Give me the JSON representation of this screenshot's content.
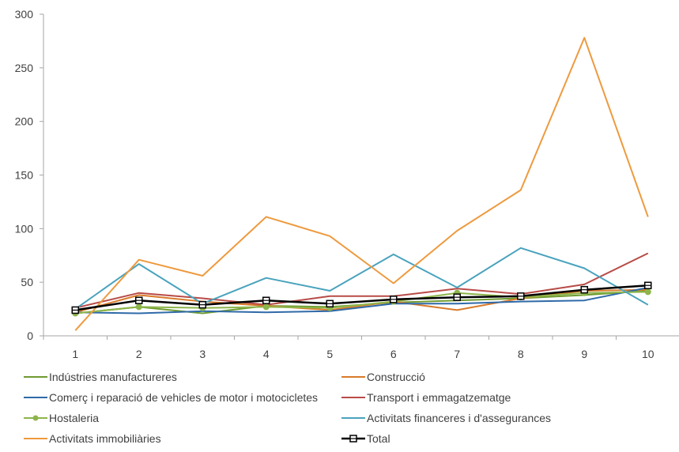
{
  "chart_data": {
    "type": "line",
    "x": [
      1,
      2,
      3,
      4,
      5,
      6,
      7,
      8,
      9,
      10
    ],
    "ylim": [
      0,
      300
    ],
    "yticks": [
      0,
      50,
      100,
      150,
      200,
      250,
      300
    ],
    "grid": false,
    "legend_position": "bottom",
    "series": [
      {
        "name": "Indústries manufactureres",
        "color": "#6f9b31",
        "marker": "none",
        "width": 2,
        "values": [
          21,
          27,
          21,
          28,
          27,
          31,
          33,
          35,
          38,
          42
        ]
      },
      {
        "name": "Construcció",
        "color": "#d97b2a",
        "marker": "none",
        "width": 2,
        "values": [
          22,
          38,
          32,
          28,
          24,
          32,
          24,
          35,
          42,
          43
        ]
      },
      {
        "name": "Comerç i reparació de vehicles de motor i motocicletes",
        "color": "#2f6aa8",
        "marker": "none",
        "width": 2,
        "values": [
          22,
          21,
          23,
          22,
          23,
          30,
          30,
          32,
          33,
          45
        ]
      },
      {
        "name": "Transport i emmagatzematge",
        "color": "#b84b47",
        "marker": "none",
        "width": 2,
        "values": [
          26,
          40,
          35,
          29,
          37,
          37,
          44,
          39,
          48,
          77
        ]
      },
      {
        "name": "Hostaleria",
        "color": "#8db54b",
        "marker": "circle",
        "width": 2,
        "values": [
          21,
          27,
          26,
          27,
          26,
          32,
          40,
          36,
          40,
          41
        ]
      },
      {
        "name": "Activitats financeres i d'assegurances",
        "color": "#4aa3bd",
        "marker": "none",
        "width": 2,
        "values": [
          25,
          67,
          30,
          54,
          42,
          76,
          45,
          82,
          63,
          29
        ]
      },
      {
        "name": "Activitats immobiliàries",
        "color": "#ee9a3e",
        "marker": "none",
        "width": 2,
        "values": [
          5,
          71,
          56,
          111,
          93,
          49,
          98,
          136,
          278,
          111
        ]
      },
      {
        "name": "Total",
        "color": "#000000",
        "marker": "square",
        "width": 2.5,
        "values": [
          24,
          33,
          29,
          33,
          30,
          34,
          36,
          37,
          43,
          47
        ]
      }
    ]
  }
}
